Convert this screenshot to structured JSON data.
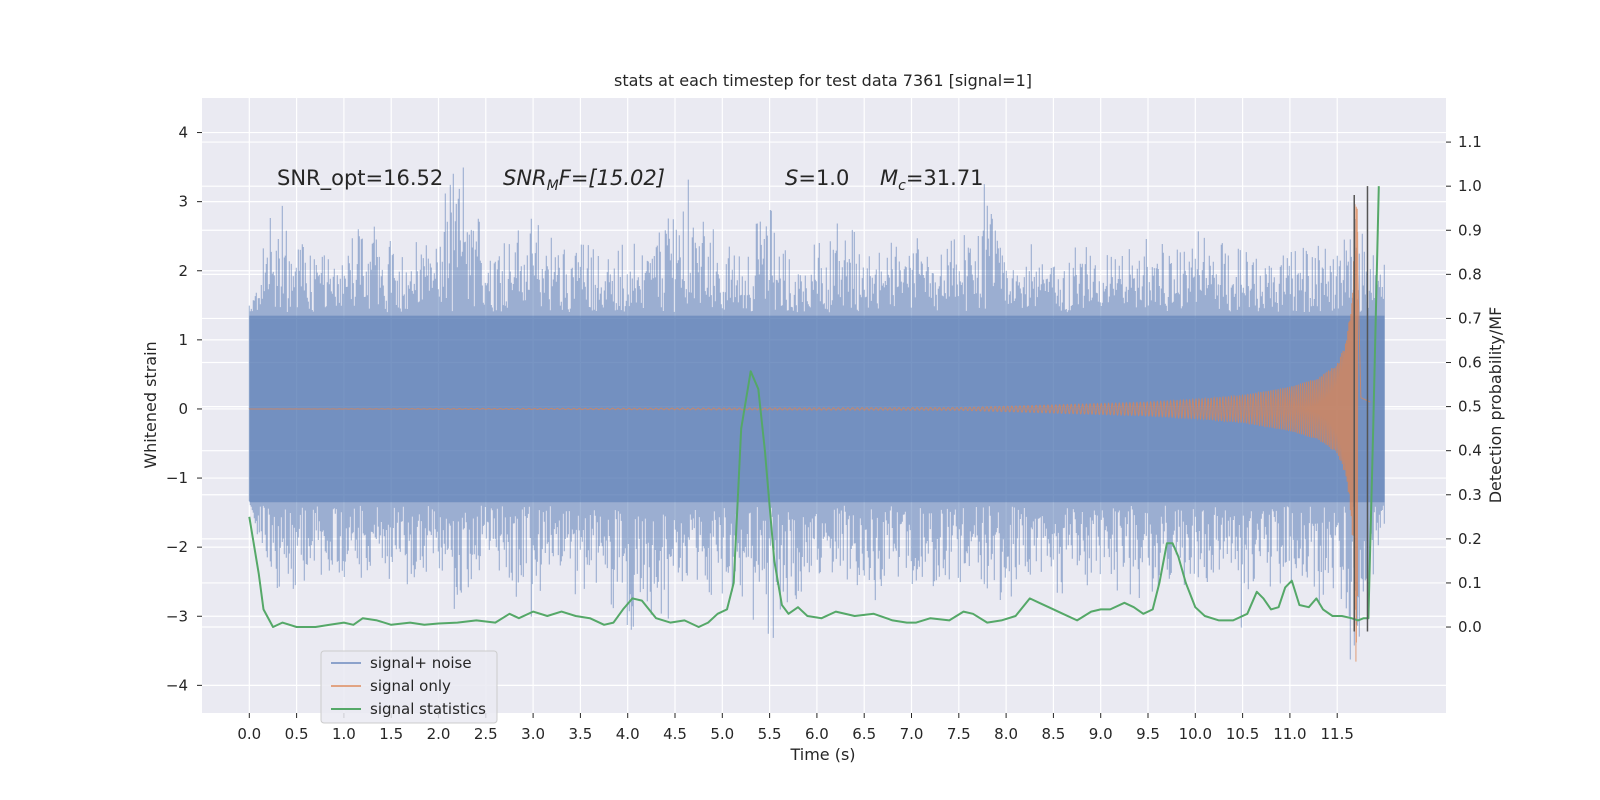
{
  "chart_data": {
    "type": "line",
    "title": "stats at each timestep for test data 7361 [signal=1]",
    "xlabel": "Time (s)",
    "ylabel_left": "Whitened strain",
    "ylabel_right": "Detection probability/MF",
    "xlim": [
      -0.5,
      12.65
    ],
    "ylim_left": [
      -4.4,
      4.5
    ],
    "ylim_right": [
      -0.195,
      1.2
    ],
    "x_ticks": [
      0.0,
      0.5,
      1.0,
      1.5,
      2.0,
      2.5,
      3.0,
      3.5,
      4.0,
      4.5,
      5.0,
      5.5,
      6.0,
      6.5,
      7.0,
      7.5,
      8.0,
      8.5,
      9.0,
      9.5,
      10.0,
      10.5,
      11.0,
      11.5
    ],
    "x_tick_labels": [
      "0.0",
      "0.5",
      "1.0",
      "1.5",
      "2.0",
      "2.5",
      "3.0",
      "3.5",
      "4.0",
      "4.5",
      "5.0",
      "5.5",
      "6.0",
      "6.5",
      "7.0",
      "7.5",
      "8.0",
      "8.5",
      "9.0",
      "9.5",
      "10.0",
      "10.5",
      "11.0",
      "11.5"
    ],
    "y_left_ticks": [
      -4,
      -3,
      -2,
      -1,
      0,
      1,
      2,
      3,
      4
    ],
    "y_left_tick_labels": [
      "−4",
      "−3",
      "−2",
      "−1",
      "0",
      "1",
      "2",
      "3",
      "4"
    ],
    "y_right_ticks": [
      0.0,
      0.1,
      0.2,
      0.3,
      0.4,
      0.5,
      0.6,
      0.7,
      0.8,
      0.9,
      1.0,
      1.1
    ],
    "y_right_tick_labels": [
      "0.0",
      "0.1",
      "0.2",
      "0.3",
      "0.4",
      "0.5",
      "0.6",
      "0.7",
      "0.8",
      "0.9",
      "1.0",
      "1.1"
    ],
    "grid": true,
    "legend_position": "lower-left",
    "annotations": {
      "snr_opt": "SNR_opt=16.52",
      "snr_mf_base": "SNR",
      "snr_mf_sub": "M",
      "snr_mf_rest": "F=[15.02]",
      "s_label": "S",
      "s_rest": "=1.0",
      "mc_base": "M",
      "mc_sub": "c",
      "mc_rest": "=31.71"
    },
    "series": [
      {
        "name": "signal+ noise",
        "color": "#4c72b0",
        "x_range": [
          0.0,
          12.0
        ],
        "envelope_sample": {
          "x": [
            0.0,
            0.25,
            0.5,
            0.75,
            1.0,
            1.25,
            1.5,
            1.75,
            2.0,
            2.2,
            2.5,
            2.75,
            3.0,
            3.25,
            3.5,
            3.75,
            3.9,
            4.25,
            4.6,
            5.0,
            5.25,
            5.5,
            5.75,
            6.0,
            6.25,
            6.5,
            6.75,
            7.0,
            7.25,
            7.5,
            7.85,
            8.0,
            8.25,
            8.5,
            8.75,
            9.0,
            9.25,
            9.5,
            9.75,
            10.0,
            10.25,
            10.5,
            10.75,
            11.0,
            11.25,
            11.5,
            11.7,
            12.0
          ],
          "max": [
            1.6,
            3.3,
            2.5,
            2.6,
            2.5,
            2.8,
            2.6,
            2.5,
            2.9,
            4.1,
            2.6,
            3.0,
            2.9,
            2.6,
            2.7,
            2.3,
            2.5,
            2.6,
            3.6,
            2.4,
            2.6,
            3.2,
            2.3,
            2.5,
            2.9,
            2.6,
            2.4,
            2.7,
            2.3,
            2.6,
            3.8,
            2.3,
            2.6,
            2.3,
            2.5,
            2.7,
            2.4,
            2.6,
            2.4,
            2.7,
            2.6,
            2.5,
            2.6,
            2.4,
            2.6,
            2.5,
            3.2,
            2.3
          ],
          "min": [
            -1.3,
            -3.1,
            -2.6,
            -2.8,
            -2.9,
            -2.5,
            -2.7,
            -2.8,
            -2.6,
            -3.0,
            -2.5,
            -2.9,
            -3.1,
            -2.6,
            -2.8,
            -2.7,
            -3.5,
            -3.4,
            -3.0,
            -2.9,
            -3.0,
            -3.7,
            -3.1,
            -2.8,
            -2.6,
            -3.0,
            -2.7,
            -2.9,
            -2.8,
            -2.6,
            -2.7,
            -3.4,
            -2.6,
            -2.8,
            -2.9,
            -2.7,
            -2.8,
            -3.0,
            -2.7,
            -2.9,
            -2.6,
            -3.3,
            -2.8,
            -2.7,
            -3.2,
            -3.0,
            -4.0,
            -1.8
          ]
        }
      },
      {
        "name": "signal only",
        "color": "#dd8452",
        "x": [
          0.0,
          7.5,
          8.5,
          9.5,
          10.0,
          10.5,
          11.0,
          11.3,
          11.5,
          11.6,
          11.65,
          11.68,
          11.7,
          11.72,
          11.75,
          12.0
        ],
        "amplitude": [
          0.0,
          0.02,
          0.06,
          0.1,
          0.14,
          0.2,
          0.32,
          0.45,
          0.65,
          1.0,
          1.6,
          2.4,
          3.9,
          2.2,
          0.2,
          0.0
        ]
      },
      {
        "name": "signal statistics",
        "color": "#55a868",
        "x": [
          0.0,
          0.1,
          0.15,
          0.25,
          0.35,
          0.5,
          0.7,
          0.85,
          1.0,
          1.1,
          1.2,
          1.35,
          1.5,
          1.7,
          1.85,
          2.0,
          2.2,
          2.4,
          2.6,
          2.75,
          2.85,
          3.0,
          3.15,
          3.3,
          3.45,
          3.6,
          3.75,
          3.85,
          3.95,
          4.05,
          4.15,
          4.3,
          4.45,
          4.6,
          4.75,
          4.85,
          4.95,
          5.05,
          5.12,
          5.2,
          5.3,
          5.38,
          5.45,
          5.55,
          5.63,
          5.7,
          5.8,
          5.9,
          6.05,
          6.2,
          6.4,
          6.6,
          6.8,
          6.95,
          7.05,
          7.2,
          7.4,
          7.55,
          7.65,
          7.8,
          7.95,
          8.1,
          8.25,
          8.35,
          8.45,
          8.6,
          8.75,
          8.9,
          9.0,
          9.1,
          9.25,
          9.35,
          9.45,
          9.55,
          9.62,
          9.7,
          9.76,
          9.82,
          9.9,
          10.0,
          10.1,
          10.25,
          10.4,
          10.55,
          10.65,
          10.72,
          10.8,
          10.88,
          10.95,
          11.02,
          11.1,
          11.2,
          11.28,
          11.35,
          11.45,
          11.55,
          11.65,
          11.72,
          11.78,
          11.83,
          11.88,
          11.94
        ],
        "y": [
          0.25,
          0.12,
          0.04,
          0.0,
          0.01,
          0.0,
          0.0,
          0.005,
          0.01,
          0.005,
          0.02,
          0.015,
          0.005,
          0.01,
          0.005,
          0.008,
          0.01,
          0.015,
          0.01,
          0.03,
          0.02,
          0.035,
          0.025,
          0.035,
          0.025,
          0.02,
          0.005,
          0.01,
          0.04,
          0.065,
          0.06,
          0.02,
          0.01,
          0.015,
          0.0,
          0.01,
          0.03,
          0.04,
          0.1,
          0.45,
          0.58,
          0.54,
          0.4,
          0.15,
          0.05,
          0.03,
          0.045,
          0.025,
          0.02,
          0.035,
          0.025,
          0.03,
          0.015,
          0.01,
          0.01,
          0.02,
          0.015,
          0.035,
          0.03,
          0.01,
          0.015,
          0.025,
          0.065,
          0.055,
          0.045,
          0.03,
          0.015,
          0.035,
          0.04,
          0.04,
          0.055,
          0.045,
          0.03,
          0.04,
          0.1,
          0.19,
          0.19,
          0.16,
          0.1,
          0.045,
          0.025,
          0.015,
          0.015,
          0.03,
          0.08,
          0.065,
          0.04,
          0.045,
          0.09,
          0.105,
          0.05,
          0.045,
          0.065,
          0.04,
          0.025,
          0.025,
          0.02,
          0.015,
          0.02,
          0.02,
          0.45,
          1.0
        ]
      }
    ]
  }
}
